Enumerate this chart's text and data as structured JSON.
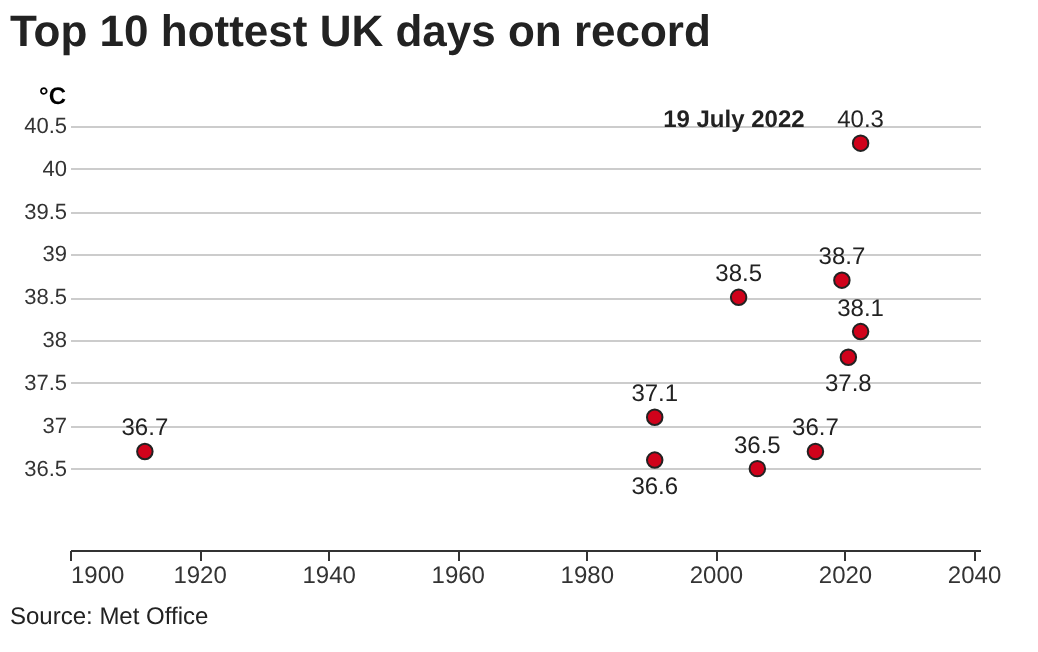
{
  "chart_data": {
    "type": "scatter",
    "title": "Top 10 hottest UK days on record",
    "ylabel": "°C",
    "x": [
      1911.6,
      1990.6,
      1990.6,
      2003.6,
      2006.5,
      2015.5,
      2019.6,
      2020.6,
      2022.5,
      2022.5
    ],
    "values": [
      36.7,
      37.1,
      36.6,
      38.5,
      36.5,
      36.7,
      38.7,
      37.8,
      38.1,
      40.3
    ],
    "color": "#d0021b",
    "marker": "circle",
    "data_labels": true,
    "xlim": [
      1900,
      2041
    ],
    "xticks": [
      1900,
      1920,
      1940,
      1960,
      1980,
      2000,
      2020,
      2040
    ],
    "ylim": [
      35.55,
      40.5
    ],
    "yticks": [
      36.5,
      37,
      37.5,
      38,
      38.5,
      39,
      39.5,
      40,
      40.5
    ],
    "grid": "y",
    "annotations": [
      {
        "text": "19 July 2022",
        "x": 2022.5,
        "y": 40.3
      },
      "Source: Met Office"
    ]
  }
}
